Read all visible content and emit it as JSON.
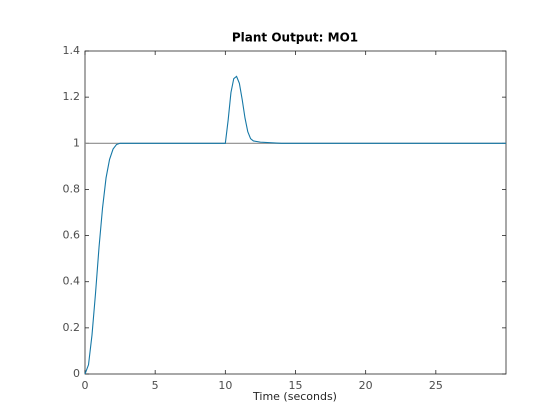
{
  "chart_data": {
    "type": "line",
    "title": "Plant Output:  MO1",
    "x_label": "Time (seconds)",
    "xlim": [
      0,
      30
    ],
    "xticks": [
      0,
      5,
      10,
      15,
      20,
      25
    ],
    "ylim": [
      0,
      1.4
    ],
    "yticks": [
      0,
      0.2,
      0.4,
      0.6,
      0.8,
      1,
      1.2,
      1.4
    ],
    "series": [
      {
        "color": "#8c8c8c",
        "x": [
          0,
          30
        ],
        "values": [
          1,
          1
        ]
      },
      {
        "color": "#1678a6",
        "x": [
          0,
          0.25,
          0.5,
          0.75,
          1,
          1.25,
          1.5,
          1.75,
          2,
          2.25,
          2.5,
          3,
          10,
          10.2,
          10.4,
          10.6,
          10.8,
          11,
          11.2,
          11.4,
          11.6,
          11.8,
          12,
          12.5,
          13,
          14,
          30
        ],
        "values": [
          0,
          0.04,
          0.17,
          0.35,
          0.55,
          0.72,
          0.85,
          0.93,
          0.975,
          0.995,
          1,
          1,
          1,
          1.1,
          1.22,
          1.28,
          1.29,
          1.26,
          1.19,
          1.11,
          1.05,
          1.02,
          1.01,
          1.005,
          1.003,
          1,
          1
        ]
      }
    ]
  }
}
